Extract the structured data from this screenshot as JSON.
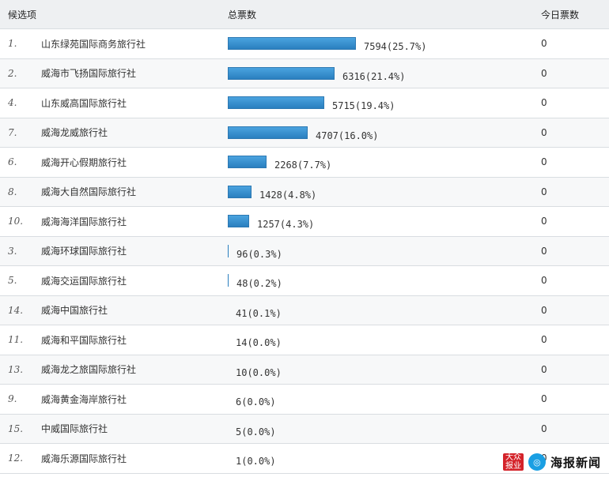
{
  "header": {
    "col_name": "候选项",
    "col_total": "总票数",
    "col_today": "今日票数"
  },
  "rows": [
    {
      "idx": "1.",
      "name": "山东绿苑国际商务旅行社",
      "votes": "7594(25.7%)",
      "pct": 25.7,
      "today": "0"
    },
    {
      "idx": "2.",
      "name": "威海市飞扬国际旅行社",
      "votes": "6316(21.4%)",
      "pct": 21.4,
      "today": "0"
    },
    {
      "idx": "4.",
      "name": "山东威高国际旅行社",
      "votes": "5715(19.4%)",
      "pct": 19.4,
      "today": "0"
    },
    {
      "idx": "7.",
      "name": "威海龙威旅行社",
      "votes": "4707(16.0%)",
      "pct": 16.0,
      "today": "0"
    },
    {
      "idx": "6.",
      "name": "威海开心假期旅行社",
      "votes": "2268(7.7%)",
      "pct": 7.7,
      "today": "0"
    },
    {
      "idx": "8.",
      "name": "威海大自然国际旅行社",
      "votes": "1428(4.8%)",
      "pct": 4.8,
      "today": "0"
    },
    {
      "idx": "10.",
      "name": "威海海洋国际旅行社",
      "votes": "1257(4.3%)",
      "pct": 4.3,
      "today": "0"
    },
    {
      "idx": "3.",
      "name": "威海环球国际旅行社",
      "votes": "96(0.3%)",
      "pct": 0.3,
      "today": "0"
    },
    {
      "idx": "5.",
      "name": "威海交运国际旅行社",
      "votes": "48(0.2%)",
      "pct": 0.2,
      "today": "0"
    },
    {
      "idx": "14.",
      "name": "威海中国旅行社",
      "votes": "41(0.1%)",
      "pct": 0.1,
      "today": "0"
    },
    {
      "idx": "11.",
      "name": "威海和平国际旅行社",
      "votes": "14(0.0%)",
      "pct": 0.0,
      "today": "0"
    },
    {
      "idx": "13.",
      "name": "威海龙之旅国际旅行社",
      "votes": "10(0.0%)",
      "pct": 0.0,
      "today": "0"
    },
    {
      "idx": "9.",
      "name": "威海黄金海岸旅行社",
      "votes": "6(0.0%)",
      "pct": 0.0,
      "today": "0"
    },
    {
      "idx": "15.",
      "name": "中威国际旅行社",
      "votes": "5(0.0%)",
      "pct": 0.0,
      "today": "0"
    },
    {
      "idx": "12.",
      "name": "威海乐源国际旅行社",
      "votes": "1(0.0%)",
      "pct": 0.0,
      "today": "0"
    }
  ],
  "watermark": {
    "seal": "大众报业",
    "brand": "海报新闻"
  },
  "colors": {
    "bar": "#2a7fbf",
    "header_bg": "#eef0f2",
    "row_alt": "#f7f8f9"
  }
}
